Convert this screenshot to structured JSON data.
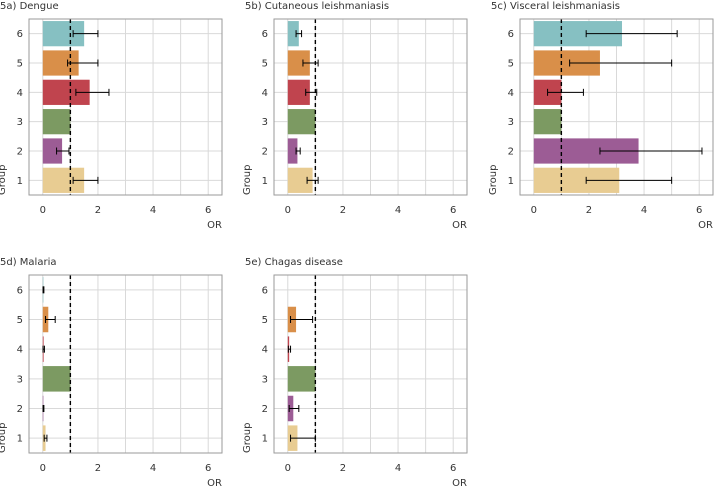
{
  "chart_data": [
    {
      "type": "bar",
      "orientation": "horizontal",
      "title": "5a) Dengue",
      "xlabel": "OR",
      "ylabel": "Group",
      "xlim": [
        -0.5,
        6.5
      ],
      "xticks": [
        0,
        2,
        4,
        6
      ],
      "ref_line": 1,
      "categories": [
        "1",
        "2",
        "3",
        "4",
        "5",
        "6"
      ],
      "values": [
        1.5,
        0.7,
        1.0,
        1.7,
        1.3,
        1.5
      ],
      "ci_low": [
        1.1,
        0.5,
        1.0,
        1.2,
        0.9,
        1.1
      ],
      "ci_high": [
        2.0,
        0.95,
        1.0,
        2.4,
        2.0,
        2.0
      ],
      "colors": [
        "#e8cc92",
        "#9c5c95",
        "#7c9a62",
        "#c0444e",
        "#d98f49",
        "#86c0c2"
      ]
    },
    {
      "type": "bar",
      "orientation": "horizontal",
      "title": "5b) Cutaneous leishmaniasis",
      "xlabel": "OR",
      "ylabel": "Group",
      "xlim": [
        -0.5,
        6.5
      ],
      "xticks": [
        0,
        2,
        4,
        6
      ],
      "ref_line": 1,
      "categories": [
        "1",
        "2",
        "3",
        "4",
        "5",
        "6"
      ],
      "values": [
        0.9,
        0.35,
        1.0,
        0.8,
        0.8,
        0.4
      ],
      "ci_low": [
        0.7,
        0.3,
        1.0,
        0.65,
        0.55,
        0.3
      ],
      "ci_high": [
        1.1,
        0.45,
        1.0,
        1.05,
        1.1,
        0.5
      ],
      "colors": [
        "#e8cc92",
        "#9c5c95",
        "#7c9a62",
        "#c0444e",
        "#d98f49",
        "#86c0c2"
      ]
    },
    {
      "type": "bar",
      "orientation": "horizontal",
      "title": "5c) Visceral leishmaniasis",
      "xlabel": "OR",
      "ylabel": "Group",
      "xlim": [
        -0.5,
        6.5
      ],
      "xticks": [
        0,
        2,
        4,
        6
      ],
      "ref_line": 1,
      "categories": [
        "1",
        "2",
        "3",
        "4",
        "5",
        "6"
      ],
      "values": [
        3.1,
        3.8,
        1.0,
        1.0,
        2.4,
        3.2
      ],
      "ci_low": [
        1.9,
        2.4,
        1.0,
        0.5,
        1.3,
        1.9
      ],
      "ci_high": [
        5.0,
        6.1,
        1.0,
        1.8,
        5.0,
        5.2
      ],
      "colors": [
        "#e8cc92",
        "#9c5c95",
        "#7c9a62",
        "#c0444e",
        "#d98f49",
        "#86c0c2"
      ]
    },
    {
      "type": "bar",
      "orientation": "horizontal",
      "title": "5d) Malaria",
      "xlabel": "OR",
      "ylabel": "Group",
      "xlim": [
        -0.5,
        6.5
      ],
      "xticks": [
        0,
        2,
        4,
        6
      ],
      "ref_line": 1,
      "categories": [
        "1",
        "2",
        "3",
        "4",
        "5",
        "6"
      ],
      "values": [
        0.1,
        0.02,
        1.0,
        0.03,
        0.2,
        0.02
      ],
      "ci_low": [
        0.05,
        0.01,
        1.0,
        0.01,
        0.1,
        0.01
      ],
      "ci_high": [
        0.15,
        0.04,
        1.0,
        0.06,
        0.45,
        0.04
      ],
      "colors": [
        "#e8cc92",
        "#9c5c95",
        "#7c9a62",
        "#c0444e",
        "#d98f49",
        "#86c0c2"
      ]
    },
    {
      "type": "bar",
      "orientation": "horizontal",
      "title": "5e) Chagas disease",
      "xlabel": "OR",
      "ylabel": "Group",
      "xlim": [
        -0.5,
        6.5
      ],
      "xticks": [
        0,
        2,
        4,
        6
      ],
      "ref_line": 1,
      "categories": [
        "1",
        "2",
        "3",
        "4",
        "5",
        "6"
      ],
      "values": [
        0.35,
        0.2,
        1.0,
        0.05,
        0.3,
        0.0
      ],
      "ci_low": [
        0.1,
        0.05,
        1.0,
        0.02,
        0.1,
        0.0
      ],
      "ci_high": [
        1.0,
        0.4,
        1.0,
        0.1,
        0.9,
        0.0
      ],
      "colors": [
        "#e8cc92",
        "#9c5c95",
        "#7c9a62",
        "#c0444e",
        "#d98f49",
        "#86c0c2"
      ]
    }
  ]
}
